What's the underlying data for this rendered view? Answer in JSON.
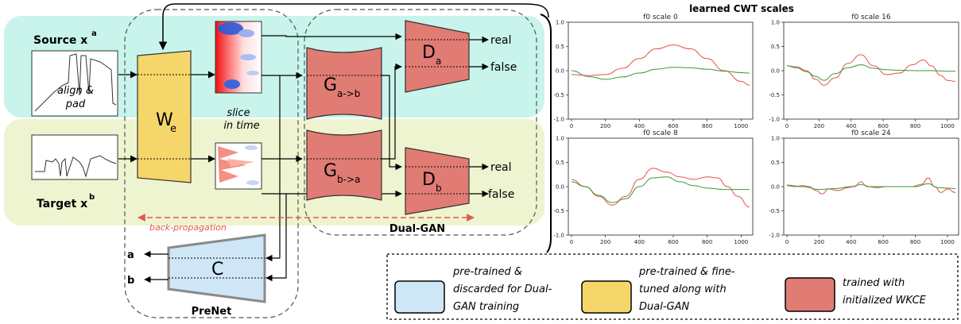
{
  "diagram": {
    "source_label": "Source x",
    "source_sup": "a",
    "target_label": "Target x",
    "target_sup": "b",
    "align_pad_1": "align &",
    "align_pad_2": "pad",
    "we_main": "W",
    "we_sub": "e",
    "slice_1": "slice",
    "slice_2": "in time",
    "gab_main": "G",
    "gab_sub": "a->b",
    "gba_main": "G",
    "gba_sub": "b->a",
    "da_main": "D",
    "da_sub": "a",
    "db_main": "D",
    "db_sub": "b",
    "real_a": "real",
    "false_a": "false",
    "real_b": "real",
    "false_b": "false",
    "backprop": "back-propagation",
    "dualgan": "Dual-GAN",
    "c_label": "C",
    "out_a": "a",
    "out_b": "b",
    "prenet": "PreNet"
  },
  "legend": {
    "blue": [
      "pre-trained &",
      "discarded for Dual-",
      "GAN training"
    ],
    "yellow": [
      "pre-trained & fine-",
      "tuned along with",
      "Dual-GAN"
    ],
    "red": [
      "trained with",
      "initialized WKCE"
    ]
  },
  "colors": {
    "teal_band": "#c8f4ec",
    "yellow_band": "#eef4cf",
    "we_fill": "#f5d66a",
    "gan_fill": "#e07c74",
    "c_fill": "#cfe6f7",
    "red_curve": "#e8504a",
    "green_curve": "#3a9a3a",
    "backprop": "#e05a4a"
  },
  "chart_heading": "learned CWT scales",
  "chart_data": [
    {
      "type": "line",
      "title": "f0 scale 0",
      "x_ticks": [
        "0",
        "200",
        "400",
        "600",
        "800",
        "1000"
      ],
      "y_ticks": [
        "1.0",
        "0.5",
        "0.0",
        "-0.5",
        "-1.0"
      ],
      "xlim": [
        0,
        1050
      ],
      "ylim": [
        -1.0,
        1.0
      ],
      "series": [
        {
          "color": "red",
          "x": [
            0,
            100,
            200,
            300,
            400,
            500,
            600,
            700,
            800,
            900,
            1000,
            1050
          ],
          "y": [
            -0.08,
            -0.1,
            -0.08,
            0.05,
            0.25,
            0.45,
            0.53,
            0.45,
            0.25,
            0.0,
            -0.22,
            -0.3
          ]
        },
        {
          "color": "green",
          "x": [
            0,
            100,
            200,
            300,
            400,
            500,
            600,
            700,
            800,
            900,
            1000,
            1050
          ],
          "y": [
            0.0,
            -0.12,
            -0.18,
            -0.13,
            -0.05,
            0.03,
            0.07,
            0.06,
            0.03,
            -0.01,
            -0.04,
            -0.05
          ]
        }
      ]
    },
    {
      "type": "line",
      "title": "f0 scale 16",
      "x_ticks": [
        "0",
        "200",
        "400",
        "600",
        "800",
        "1000"
      ],
      "y_ticks": [
        "1.0",
        "0.5",
        "0.0",
        "-0.5",
        "-1.0"
      ],
      "xlim": [
        0,
        1050
      ],
      "ylim": [
        -1.0,
        1.0
      ],
      "series": [
        {
          "color": "red",
          "x": [
            0,
            60,
            120,
            180,
            230,
            300,
            380,
            460,
            540,
            620,
            700,
            780,
            850,
            900,
            960,
            1000,
            1050
          ],
          "y": [
            0.1,
            0.08,
            0.0,
            -0.18,
            -0.3,
            -0.15,
            0.15,
            0.33,
            0.1,
            -0.08,
            -0.05,
            0.12,
            0.22,
            0.1,
            -0.1,
            -0.2,
            -0.22
          ]
        },
        {
          "color": "green",
          "x": [
            0,
            60,
            120,
            180,
            230,
            300,
            380,
            460,
            540,
            620,
            700,
            800,
            900,
            1000,
            1050
          ],
          "y": [
            0.1,
            0.06,
            -0.02,
            -0.12,
            -0.2,
            -0.06,
            0.06,
            0.12,
            0.05,
            0.02,
            0.01,
            0.0,
            0.0,
            -0.01,
            -0.01
          ]
        }
      ]
    },
    {
      "type": "line",
      "title": "f0 scale 8",
      "x_ticks": [
        "0",
        "200",
        "400",
        "600",
        "800",
        "1000"
      ],
      "y_ticks": [
        "1.0",
        "0.5",
        "0.0",
        "-0.5",
        "-1.0"
      ],
      "xlim": [
        0,
        1050
      ],
      "ylim": [
        -1.0,
        1.0
      ],
      "series": [
        {
          "color": "red",
          "x": [
            0,
            80,
            160,
            240,
            320,
            400,
            480,
            560,
            640,
            720,
            800,
            860,
            920,
            980,
            1050
          ],
          "y": [
            0.15,
            0.0,
            -0.2,
            -0.38,
            -0.2,
            0.15,
            0.38,
            0.3,
            0.2,
            0.15,
            0.2,
            0.18,
            0.0,
            -0.2,
            -0.42
          ]
        },
        {
          "color": "green",
          "x": [
            0,
            80,
            160,
            240,
            320,
            400,
            480,
            560,
            640,
            720,
            800,
            900,
            1000,
            1050
          ],
          "y": [
            0.1,
            0.0,
            -0.18,
            -0.33,
            -0.25,
            0.0,
            0.18,
            0.2,
            0.1,
            0.02,
            -0.03,
            -0.06,
            -0.06,
            -0.06
          ]
        }
      ]
    },
    {
      "type": "line",
      "title": "f0 scale 24",
      "x_ticks": [
        "0",
        "200",
        "400",
        "600",
        "800",
        "1000"
      ],
      "y_ticks": [
        "1.0",
        "0.5",
        "0.0",
        "-0.5",
        "-1.0"
      ],
      "xlim": [
        0,
        1050
      ],
      "ylim": [
        -1.0,
        1.0
      ],
      "series": [
        {
          "color": "red",
          "x": [
            0,
            50,
            100,
            140,
            180,
            220,
            260,
            320,
            380,
            420,
            460,
            500,
            560,
            620,
            700,
            780,
            840,
            880,
            920,
            960,
            1000,
            1050
          ],
          "y": [
            0.02,
            0.0,
            0.02,
            0.0,
            -0.08,
            -0.15,
            -0.05,
            -0.08,
            -0.02,
            0.0,
            0.1,
            0.0,
            -0.02,
            0.0,
            0.0,
            0.0,
            0.05,
            0.18,
            0.0,
            -0.12,
            -0.05,
            -0.12
          ]
        },
        {
          "color": "green",
          "x": [
            0,
            100,
            200,
            300,
            400,
            460,
            520,
            600,
            700,
            800,
            880,
            940,
            1000,
            1050
          ],
          "y": [
            0.03,
            0.0,
            -0.06,
            -0.04,
            0.0,
            0.04,
            0.0,
            0.0,
            0.0,
            0.0,
            0.06,
            -0.02,
            -0.03,
            -0.04
          ]
        }
      ]
    }
  ]
}
